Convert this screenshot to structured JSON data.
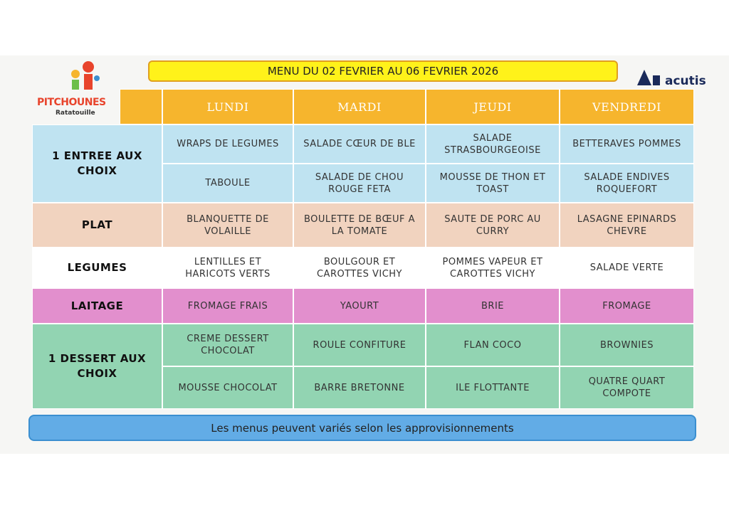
{
  "header": {
    "title": "MENU DU 02 FEVRIER AU 06 FEVRIER 2026"
  },
  "logo_left": {
    "name": "PITCHOUNES",
    "subtitle": "Ratatouille"
  },
  "logo_right": {
    "name": "acutis"
  },
  "table": {
    "days": [
      "LUNDI",
      "MARDI",
      "JEUDI",
      "VENDREDI"
    ],
    "groups": [
      {
        "label": "1 ENTREE AUX CHOIX",
        "rows": [
          [
            "WRAPS DE LEGUMES",
            "SALADE CŒUR DE BLE",
            "SALADE STRASBOURGEOISE",
            "BETTERAVES POMMES"
          ],
          [
            "TABOULE",
            "SALADE DE CHOU ROUGE FETA",
            "MOUSSE DE THON ET TOAST",
            "SALADE ENDIVES ROQUEFORT"
          ]
        ]
      },
      {
        "label": "PLAT",
        "rows": [
          [
            "BLANQUETTE DE VOLAILLE",
            "BOULETTE DE BŒUF A LA TOMATE",
            "SAUTE DE PORC AU CURRY",
            "LASAGNE EPINARDS CHEVRE"
          ]
        ]
      },
      {
        "label": "LEGUMES",
        "rows": [
          [
            "LENTILLES ET HARICOTS VERTS",
            "BOULGOUR ET CAROTTES VICHY",
            "POMMES VAPEUR ET CAROTTES VICHY",
            "SALADE VERTE"
          ]
        ]
      },
      {
        "label": "LAITAGE",
        "rows": [
          [
            "FROMAGE FRAIS",
            "YAOURT",
            "BRIE",
            "FROMAGE"
          ]
        ]
      },
      {
        "label": "1 DESSERT AUX CHOIX",
        "rows": [
          [
            "CREME DESSERT CHOCOLAT",
            "ROULE CONFITURE",
            "FLAN COCO",
            "BROWNIES"
          ],
          [
            "MOUSSE CHOCOLAT",
            "BARRE BRETONNE",
            "ILE FLOTTANTE",
            "QUATRE QUART COMPOTE"
          ]
        ]
      }
    ]
  },
  "footer": {
    "note": "Les menus peuvent variés selon les approvisionnements"
  }
}
